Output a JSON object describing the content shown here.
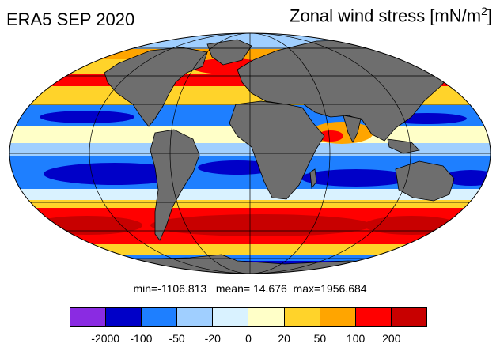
{
  "title_left": "ERA5 SEP 2020",
  "title_right": {
    "text": "Zonal wind stress [mN/m",
    "superscript": "2",
    "suffix": "]"
  },
  "stats_text": "min=-1106.813   mean= 14.676  max=1956.684",
  "map": {
    "projection": "mollweide",
    "land_color": "#6e6e6e",
    "graticule_color": "#000000"
  },
  "colorbar": {
    "colors": [
      "#8a2be2",
      "#0000c8",
      "#1e7fff",
      "#a0cfff",
      "#d9f2ff",
      "#ffffc8",
      "#ffd32a",
      "#ffa500",
      "#ff0000",
      "#c80000"
    ],
    "tick_labels": [
      "-2000",
      "-100",
      "-50",
      "-20",
      "0",
      "20",
      "50",
      "100",
      "200"
    ]
  }
}
